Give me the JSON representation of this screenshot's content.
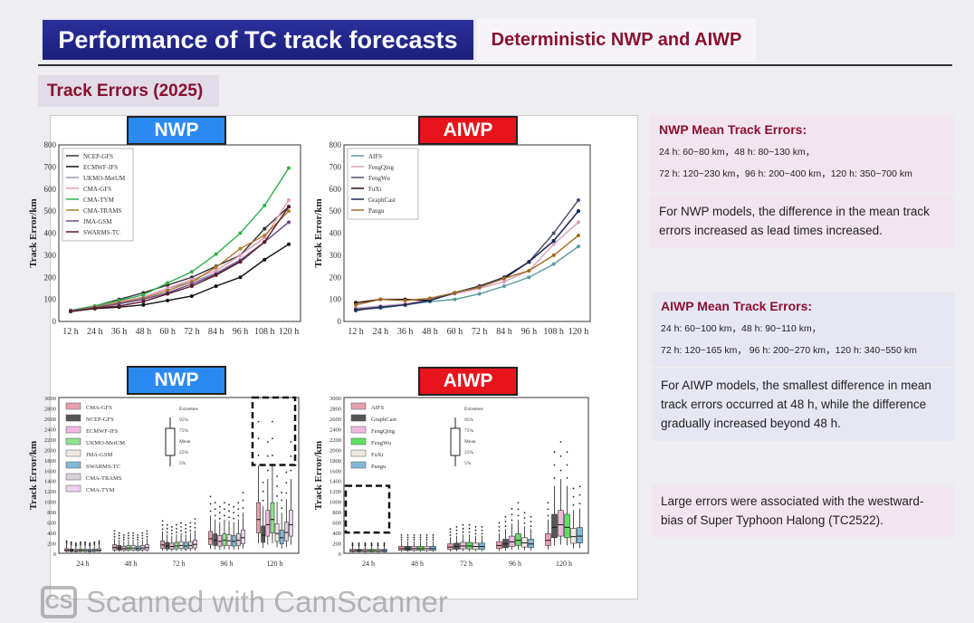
{
  "header": {
    "title": "Performance of TC track forecasts",
    "subtitle": "Deterministic NWP and AIWP",
    "section": "Track Errors (2025)"
  },
  "tags": {
    "nwp": "NWP",
    "aiwp": "AIWP"
  },
  "notes": {
    "nwp_head": "NWP Mean Track Errors:",
    "nwp_l1": "24 h: 60~80 km，48 h: 80~130 km，",
    "nwp_l2": "72 h: 120~230 km，96 h: 200~400 km，120 h: 350~700 km",
    "nwp_p": "For NWP models, the difference in the mean track errors increased as lead times increased.",
    "aiwp_head": "AIWP Mean Track Errors:",
    "aiwp_l1": "24 h: 60~100 km，48 h: 90~110 km，",
    "aiwp_l2": "72 h: 120~165 km， 96 h: 200~270 km，120 h: 340~550 km",
    "aiwp_p": "For AIWP models, the smallest difference in mean track errors occurred at  48 h, while the difference gradually increased beyond 48 h.",
    "large": "Large errors were associated with the westward-bias of Super Typhoon Halong (TC2522)."
  },
  "watermark": "Scanned with CamScanner",
  "watermark_logo": "CS",
  "chart_data": [
    {
      "type": "line",
      "title": "NWP",
      "ylabel": "Track Error/km",
      "ylim": [
        0,
        800
      ],
      "yticks": [
        0,
        100,
        200,
        300,
        400,
        500,
        600,
        700,
        800
      ],
      "categories": [
        "12 h",
        "24 h",
        "36 h",
        "48 h",
        "60 h",
        "72 h",
        "84 h",
        "96 h",
        "108 h",
        "120 h"
      ],
      "legend": "top-left",
      "series": [
        {
          "name": "NCEP-GFS",
          "color": "#333333",
          "values": [
            50,
            70,
            100,
            130,
            165,
            200,
            250,
            300,
            420,
            520
          ]
        },
        {
          "name": "ECMWF-IFS",
          "color": "#111111",
          "values": [
            45,
            58,
            65,
            75,
            95,
            115,
            160,
            200,
            280,
            350
          ]
        },
        {
          "name": "UKMO-MetUM",
          "color": "#9a9aaa",
          "values": [
            50,
            65,
            90,
            110,
            150,
            180,
            220,
            280,
            360,
            450
          ]
        },
        {
          "name": "CMA-GFS",
          "color": "#e59ab8",
          "values": [
            50,
            70,
            90,
            110,
            150,
            190,
            230,
            300,
            380,
            550
          ]
        },
        {
          "name": "CMA-TYM",
          "color": "#2fb24a",
          "values": [
            50,
            70,
            95,
            120,
            175,
            225,
            305,
            400,
            525,
            695
          ]
        },
        {
          "name": "CMA-TRAMS",
          "color": "#b07a30",
          "values": [
            48,
            65,
            85,
            105,
            140,
            180,
            245,
            330,
            390,
            500
          ]
        },
        {
          "name": "JMA-GSM",
          "color": "#6a4a8a",
          "values": [
            48,
            62,
            80,
            100,
            130,
            170,
            215,
            275,
            360,
            450
          ]
        },
        {
          "name": "SWARMS-TC",
          "color": "#5a1a2a",
          "values": [
            45,
            60,
            70,
            90,
            125,
            160,
            210,
            270,
            360,
            520
          ]
        }
      ]
    },
    {
      "type": "line",
      "title": "AIWP",
      "ylabel": "Track Error/km",
      "ylim": [
        0,
        800
      ],
      "yticks": [
        0,
        100,
        200,
        300,
        400,
        500,
        600,
        700,
        800
      ],
      "categories": [
        "12 h",
        "24 h",
        "36 h",
        "48 h",
        "60 h",
        "72 h",
        "84 h",
        "96 h",
        "108 h",
        "120 h"
      ],
      "legend": "top-left",
      "series": [
        {
          "name": "AIFS",
          "color": "#5a9aa0",
          "values": [
            55,
            60,
            75,
            90,
            100,
            125,
            160,
            200,
            260,
            340
          ]
        },
        {
          "name": "FengQing",
          "color": "#d8a0c0",
          "values": [
            60,
            70,
            80,
            100,
            125,
            150,
            180,
            230,
            350,
            450
          ]
        },
        {
          "name": "FengWu",
          "color": "#4a4a6a",
          "values": [
            55,
            65,
            75,
            95,
            130,
            160,
            200,
            270,
            400,
            550
          ]
        },
        {
          "name": "FuXi",
          "color": "#2a0a10",
          "values": [
            85,
            100,
            100,
            95,
            130,
            160,
            195,
            270,
            365,
            500
          ]
        },
        {
          "name": "GraphCast",
          "color": "#1a2a5a",
          "values": [
            50,
            65,
            75,
            95,
            130,
            160,
            200,
            270,
            365,
            500
          ]
        },
        {
          "name": "Pangu",
          "color": "#a06a20",
          "values": [
            75,
            100,
            95,
            105,
            130,
            155,
            195,
            230,
            300,
            390
          ]
        }
      ]
    },
    {
      "type": "box",
      "title": "NWP",
      "ylabel": "Track Error/km",
      "ylim": [
        0,
        3000
      ],
      "yticks": [
        0,
        200,
        400,
        600,
        800,
        1000,
        1200,
        1400,
        1600,
        1800,
        2000,
        2200,
        2400,
        2600,
        2800,
        3000
      ],
      "categories": [
        "24 h",
        "48 h",
        "72 h",
        "96 h",
        "120 h"
      ],
      "legend": "top-left",
      "box_legend": [
        "Extremes",
        "95%",
        "75%",
        "Mean",
        "25%",
        "5%"
      ],
      "series": [
        {
          "name": "CMA-GFS",
          "color": "#e8a0b0",
          "medians": [
            60,
            110,
            160,
            280,
            650
          ]
        },
        {
          "name": "NCEP-GFS",
          "color": "#555555",
          "medians": [
            55,
            100,
            140,
            250,
            350
          ]
        },
        {
          "name": "ECMWF-IFS",
          "color": "#f0b8e0",
          "medians": [
            50,
            90,
            130,
            230,
            550
          ]
        },
        {
          "name": "UKMO-MetUM",
          "color": "#90e090",
          "medians": [
            55,
            100,
            140,
            250,
            650
          ]
        },
        {
          "name": "JMA-GSM",
          "color": "#f0e8e0",
          "medians": [
            55,
            100,
            150,
            240,
            380
          ]
        },
        {
          "name": "SWARMS-TC",
          "color": "#80b8d8",
          "medians": [
            50,
            90,
            140,
            230,
            300
          ]
        },
        {
          "name": "CMA-TRAMS",
          "color": "#d8d0d8",
          "medians": [
            55,
            100,
            150,
            250,
            400
          ]
        },
        {
          "name": "CMA-TYM",
          "color": "#f0d0f0",
          "medians": [
            60,
            110,
            170,
            300,
            550
          ]
        }
      ]
    },
    {
      "type": "box",
      "title": "AIWP",
      "ylabel": "Track Error/km",
      "ylim": [
        0,
        3000
      ],
      "yticks": [
        0,
        200,
        400,
        600,
        800,
        1000,
        1200,
        1400,
        1600,
        1800,
        2000,
        2200,
        2400,
        2600,
        2800,
        3000
      ],
      "categories": [
        "24 h",
        "48 h",
        "72 h",
        "96 h",
        "120 h"
      ],
      "legend": "top-left",
      "box_legend": [
        "Extremes",
        "95%",
        "75%",
        "Mean",
        "25%",
        "5%"
      ],
      "series": [
        {
          "name": "AIFS",
          "color": "#e8a0b0",
          "medians": [
            50,
            90,
            120,
            150,
            250
          ]
        },
        {
          "name": "GraphCast",
          "color": "#555555",
          "medians": [
            50,
            90,
            130,
            180,
            500
          ]
        },
        {
          "name": "FengQing",
          "color": "#f0b8e0",
          "medians": [
            50,
            90,
            140,
            220,
            550
          ]
        },
        {
          "name": "FengWu",
          "color": "#60e060",
          "medians": [
            50,
            90,
            140,
            250,
            500
          ]
        },
        {
          "name": "FuXi",
          "color": "#f0e8e0",
          "medians": [
            50,
            90,
            130,
            200,
            320
          ]
        },
        {
          "name": "Pangu",
          "color": "#80b8d8",
          "medians": [
            50,
            90,
            130,
            180,
            330
          ]
        }
      ]
    }
  ]
}
